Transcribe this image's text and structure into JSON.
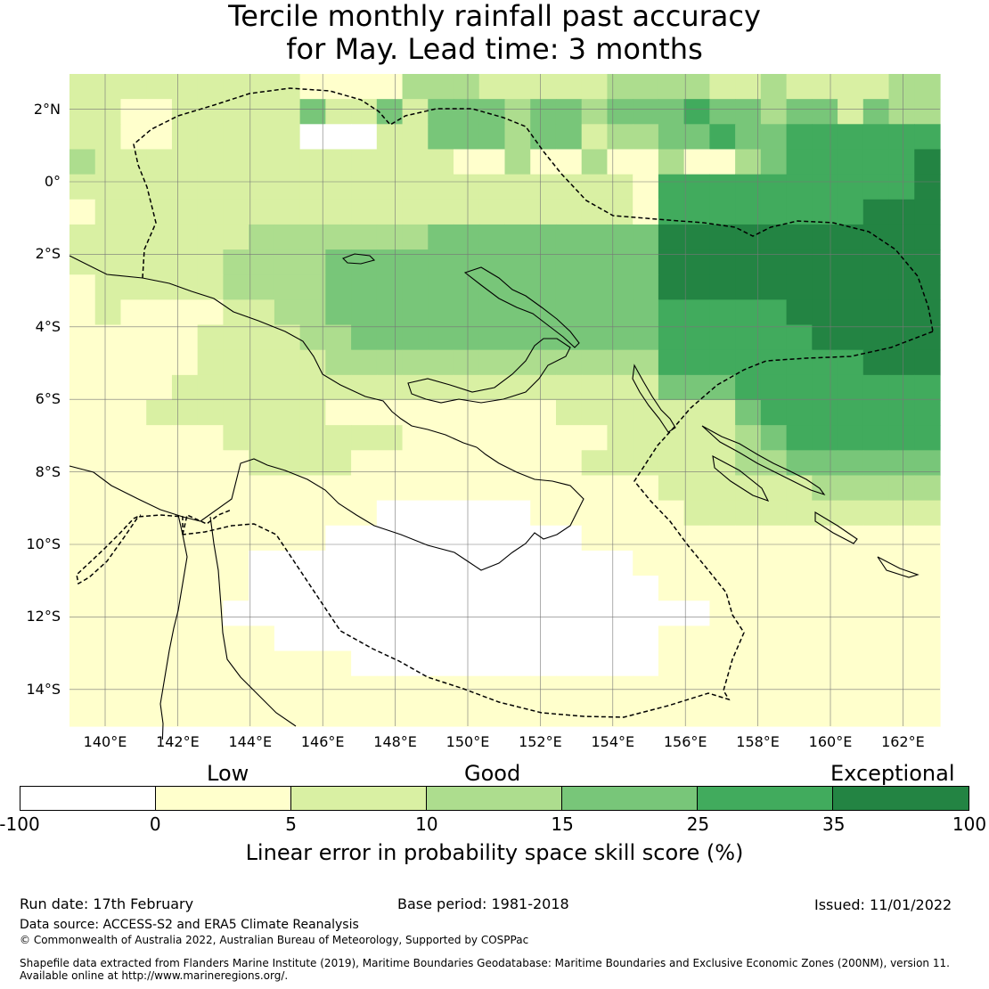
{
  "title": {
    "line1": "Tercile monthly rainfall past accuracy",
    "line2": "for May. Lead time: 3 months"
  },
  "map": {
    "lat_labels": [
      "2°N",
      "0°",
      "2°S",
      "4°S",
      "6°S",
      "8°S",
      "10°S",
      "12°S",
      "14°S"
    ],
    "lon_labels": [
      "140°E",
      "142°E",
      "144°E",
      "146°E",
      "148°E",
      "150°E",
      "152°E",
      "154°E",
      "156°E",
      "158°E",
      "160°E",
      "162°E"
    ],
    "skill_grid_values_percent": [
      "2222222221111333222223333223222233",
      "2211222224224244434434445443442433",
      "2211222220002244434423344544555555",
      "3222222222222221131131131134555556",
      "2222222222222222222222155555555556",
      "1222222222222222222222155555555666",
      "2222222333333344444444466666666666",
      "2222223333444444444444466666666666",
      "1222223333444444444444466666666666",
      "1211112233444444444444455555666666",
      "1111122223344444444444455555566666",
      "1111122222333333333333355555555666",
      "1111222222222222222222244455555555",
      "1112222222111111111222222245555555",
      "1111112222222111111112222234555555",
      "1111111222211111111122222233444444",
      "1111111111111111111111122222233333",
      "1111111111110000001111112222222222",
      "1111111111000000000011111111111111",
      "1111111000000000000000111111111111",
      "1111111000000000000000011111111111",
      "1111110000000000000000000111111111",
      "1111111100000000000000011111111111",
      "1111111111100000000000011111111111",
      "1111111111111111111111111111111111",
      "1111111111111111111111111111111111"
    ],
    "land": [
      "Papua New Guinea",
      "New Britain",
      "New Ireland",
      "Solomon Islands",
      "Cape York"
    ]
  },
  "colorbar": {
    "class_labels": [
      "Low",
      "Good",
      "Exceptional"
    ],
    "ticks": [
      "-100",
      "0",
      "5",
      "10",
      "15",
      "25",
      "35",
      "100"
    ],
    "colors": [
      "#ffffff",
      "#ffffcc",
      "#d9f0a3",
      "#addd8e",
      "#78c679",
      "#41ab5d",
      "#238443"
    ],
    "label": "Linear error in probability space skill score (%)"
  },
  "footer": {
    "run_date": "Run date: 17th February",
    "base_period": "Base period: 1981-2018",
    "issued": "Issued: 11/01/2022",
    "data_source": "Data source: ACCESS-S2 and ERA5 Climate Reanalysis",
    "copyright": "© Commonwealth of Australia 2022, Australian Bureau of Meteorology, Supported by COSPPac",
    "shapefile_line1": "Shapefile data extracted from Flanders Marine Institute (2019), Maritime Boundaries Geodatabase: Maritime Boundaries and Exclusive Economic Zones (200NM), version 11.",
    "shapefile_line2": "Available online at http://www.marineregions.org/."
  }
}
